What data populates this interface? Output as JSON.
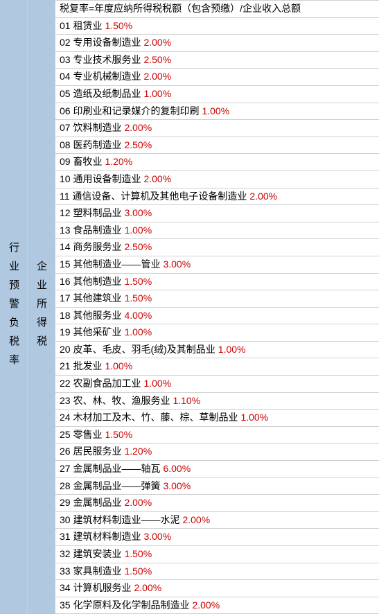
{
  "leftHeader": "行业预警负税率",
  "midHeader": "企业所得税",
  "formula": "税复率=年度应纳所得税税额（包含预缴）/企业收入总额",
  "rows": [
    {
      "num": "01",
      "name": "租赁业",
      "rate": "1.50%"
    },
    {
      "num": "02",
      "name": "专用设备制造业",
      "rate": "2.00%"
    },
    {
      "num": "03",
      "name": "专业技术服务业",
      "rate": "2.50%"
    },
    {
      "num": "04",
      "name": "专业机械制造业",
      "rate": "2.00%"
    },
    {
      "num": "05",
      "name": "造纸及纸制品业",
      "rate": "1.00%"
    },
    {
      "num": "06",
      "name": "印刷业和记录媒介的复制印刷",
      "rate": "1.00%"
    },
    {
      "num": "07",
      "name": "饮料制造业",
      "rate": "2.00%"
    },
    {
      "num": "08",
      "name": "医药制造业",
      "rate": "2.50%"
    },
    {
      "num": "09",
      "name": "畜牧业",
      "rate": "1.20%"
    },
    {
      "num": "10",
      "name": "通用设备制造业",
      "rate": "2.00%"
    },
    {
      "num": "11",
      "name": "通信设备、计算机及其他电子设备制造业",
      "rate": "2.00%"
    },
    {
      "num": "12",
      "name": "塑料制品业",
      "rate": "3.00%"
    },
    {
      "num": "13",
      "name": "食品制造业",
      "rate": "1.00%"
    },
    {
      "num": "14",
      "name": "商务服务业",
      "rate": "2.50%"
    },
    {
      "num": "15",
      "name": "其他制造业——管业",
      "rate": "3.00%"
    },
    {
      "num": "16",
      "name": "其他制造业",
      "rate": "1.50%"
    },
    {
      "num": "17",
      "name": "其他建筑业",
      "rate": "1.50%"
    },
    {
      "num": "18",
      "name": "其他服务业",
      "rate": "4.00%"
    },
    {
      "num": "19",
      "name": "其他采矿业",
      "rate": "1.00%"
    },
    {
      "num": "20",
      "name": "皮革、毛皮、羽毛(绒)及其制品业",
      "rate": "1.00%"
    },
    {
      "num": "21",
      "name": "批发业",
      "rate": "1.00%"
    },
    {
      "num": "22",
      "name": "农副食品加工业",
      "rate": "1.00%"
    },
    {
      "num": "23",
      "name": "农、林、牧、渔服务业",
      "rate": "1.10%"
    },
    {
      "num": "24",
      "name": "木材加工及木、竹、藤、棕、草制品业",
      "rate": "1.00%"
    },
    {
      "num": "25",
      "name": "零售业",
      "rate": "1.50%"
    },
    {
      "num": "26",
      "name": "居民服务业",
      "rate": "1.20%"
    },
    {
      "num": "27",
      "name": "金属制品业——轴瓦",
      "rate": "6.00%"
    },
    {
      "num": "28",
      "name": "金属制品业——弹簧",
      "rate": "3.00%"
    },
    {
      "num": "29",
      "name": "金属制品业",
      "rate": "2.00%"
    },
    {
      "num": "30",
      "name": "建筑材料制造业——水泥",
      "rate": "2.00%"
    },
    {
      "num": "31",
      "name": "建筑材料制造业",
      "rate": "3.00%"
    },
    {
      "num": "32",
      "name": "建筑安装业",
      "rate": "1.50%"
    },
    {
      "num": "33",
      "name": "家具制造业",
      "rate": "1.50%"
    },
    {
      "num": "34",
      "name": "计算机服务业",
      "rate": "2.00%"
    },
    {
      "num": "35",
      "name": "化学原料及化学制品制造业",
      "rate": "2.00%"
    }
  ],
  "colors": {
    "leftBg": "#b0c8e0",
    "border": "#d0d0d0",
    "rateColor": "#cc0000",
    "textColor": "#000000",
    "rowBg": "#ffffff"
  },
  "fontSize": 14
}
